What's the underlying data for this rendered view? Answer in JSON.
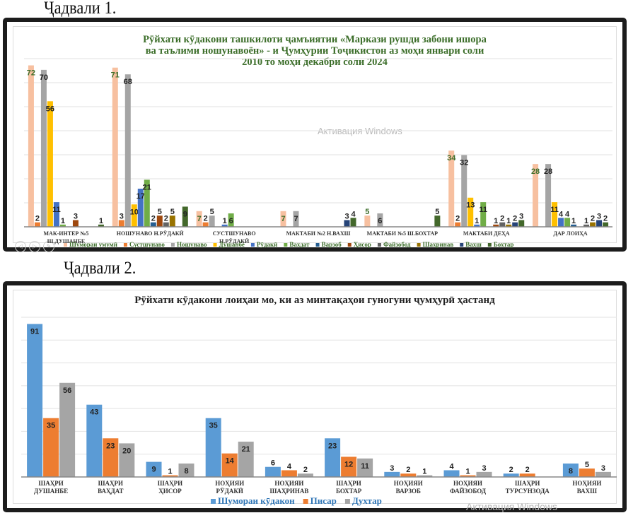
{
  "captions": {
    "table1": "Ҷадвали 1.",
    "table2": "Ҷадвали 2."
  },
  "watermark": "Активация Windows",
  "chart_data": [
    {
      "type": "bar",
      "title_lines": [
        "Рӯйхати кӯдакони ташкилоти ҷамъиятии «Маркази рушди забони ишора",
        "ва таълими ношунавоён» - и Ҷумҳурии Тоҷикистон аз моҳи январи соли",
        "2010 то моҳи декабри соли 2024"
      ],
      "categories": [
        [
          "МАК-ИНТЕР №5",
          "Ш.ДУШАНБЕ"
        ],
        [
          "НОШУНАВО Н.РӮДАКӢ"
        ],
        [
          "СУСТШУНАВО",
          "Н.РӮДАКӢ"
        ],
        [
          "МАКТАБИ №2 Н.ВАХШ"
        ],
        [
          "МАКТАБИ №5 Ш.БОХТАР"
        ],
        [
          "МАКТАБИ ДЕҲА"
        ],
        [
          "ДАР ЛОИҲА"
        ]
      ],
      "series": [
        {
          "name": "Шумораи умумӣ",
          "color": "#f7c0a0",
          "values": [
            72,
            71,
            7,
            7,
            5,
            34,
            28
          ]
        },
        {
          "name": "Сустшунаво",
          "color": "#ed7d31",
          "values": [
            2,
            3,
            2,
            0,
            0,
            2,
            0
          ]
        },
        {
          "name": "Ношунаво",
          "color": "#a5a5a5",
          "values": [
            70,
            68,
            5,
            7,
            6,
            32,
            28
          ]
        },
        {
          "name": "Душанбе",
          "color": "#ffc000",
          "values": [
            56,
            10,
            0,
            0,
            0,
            13,
            11
          ]
        },
        {
          "name": "Рӯдакӣ",
          "color": "#4472c4",
          "values": [
            11,
            17,
            1,
            0,
            0,
            1,
            4
          ]
        },
        {
          "name": "Вахдат",
          "color": "#70ad47",
          "values": [
            1,
            21,
            6,
            0,
            0,
            11,
            4
          ]
        },
        {
          "name": "Варзоб",
          "color": "#255e91",
          "values": [
            0,
            2,
            0,
            0,
            0,
            0,
            1
          ]
        },
        {
          "name": "Ҳисор",
          "color": "#9e480e",
          "values": [
            3,
            5,
            0,
            0,
            0,
            1,
            0
          ]
        },
        {
          "name": "Файзобод",
          "color": "#636363",
          "values": [
            0,
            2,
            0,
            0,
            0,
            2,
            1
          ]
        },
        {
          "name": "Шахринав",
          "color": "#997300",
          "values": [
            0,
            5,
            0,
            0,
            0,
            1,
            2
          ]
        },
        {
          "name": "Вахш",
          "color": "#264478",
          "values": [
            0,
            0,
            0,
            3,
            0,
            2,
            3
          ]
        },
        {
          "name": "Бохтар",
          "color": "#43682b",
          "values": [
            1,
            9,
            0,
            4,
            5,
            3,
            2
          ]
        }
      ],
      "ylim": [
        0,
        75
      ],
      "grid": true,
      "legend": "bottom"
    },
    {
      "type": "bar",
      "title_lines": [
        "Рӯйхати кӯдакони лоиҳаи мо, ки аз минтақаҳои гуногуни  ҷумҳурӣ ҳастанд"
      ],
      "categories": [
        [
          "ШАҲРИ",
          "ДУШАНБЕ"
        ],
        [
          "ШАҲРИ",
          "ВАҲДАТ"
        ],
        [
          "ШАҲРИ",
          "ҲИСОР"
        ],
        [
          "НОҲИЯИ",
          "РӮДАКӢ"
        ],
        [
          "НОҲИЯИ",
          "ШАҲРИНАВ"
        ],
        [
          "ШАҲРИ",
          "БОХТАР"
        ],
        [
          "НОҲИЯИ",
          "ВАРЗОБ"
        ],
        [
          "НОҲИЯИ",
          "ФАЙЗОБОД"
        ],
        [
          "ШАҲРИ",
          "ТУРСУНЗОДА"
        ],
        [
          "НОҲИЯИ",
          "ВАХШ"
        ]
      ],
      "series": [
        {
          "name": "Шумораи кӯдакон",
          "color": "#5b9bd5",
          "values": [
            91,
            43,
            9,
            35,
            6,
            23,
            3,
            4,
            2,
            8
          ]
        },
        {
          "name": "Писар",
          "color": "#ed7d31",
          "values": [
            35,
            23,
            1,
            14,
            4,
            12,
            2,
            1,
            2,
            5
          ]
        },
        {
          "name": "Духтар",
          "color": "#a5a5a5",
          "values": [
            56,
            20,
            8,
            21,
            2,
            11,
            1,
            3,
            0,
            3
          ]
        }
      ],
      "ylim": [
        0,
        95
      ],
      "grid": true,
      "legend": "bottom"
    }
  ]
}
